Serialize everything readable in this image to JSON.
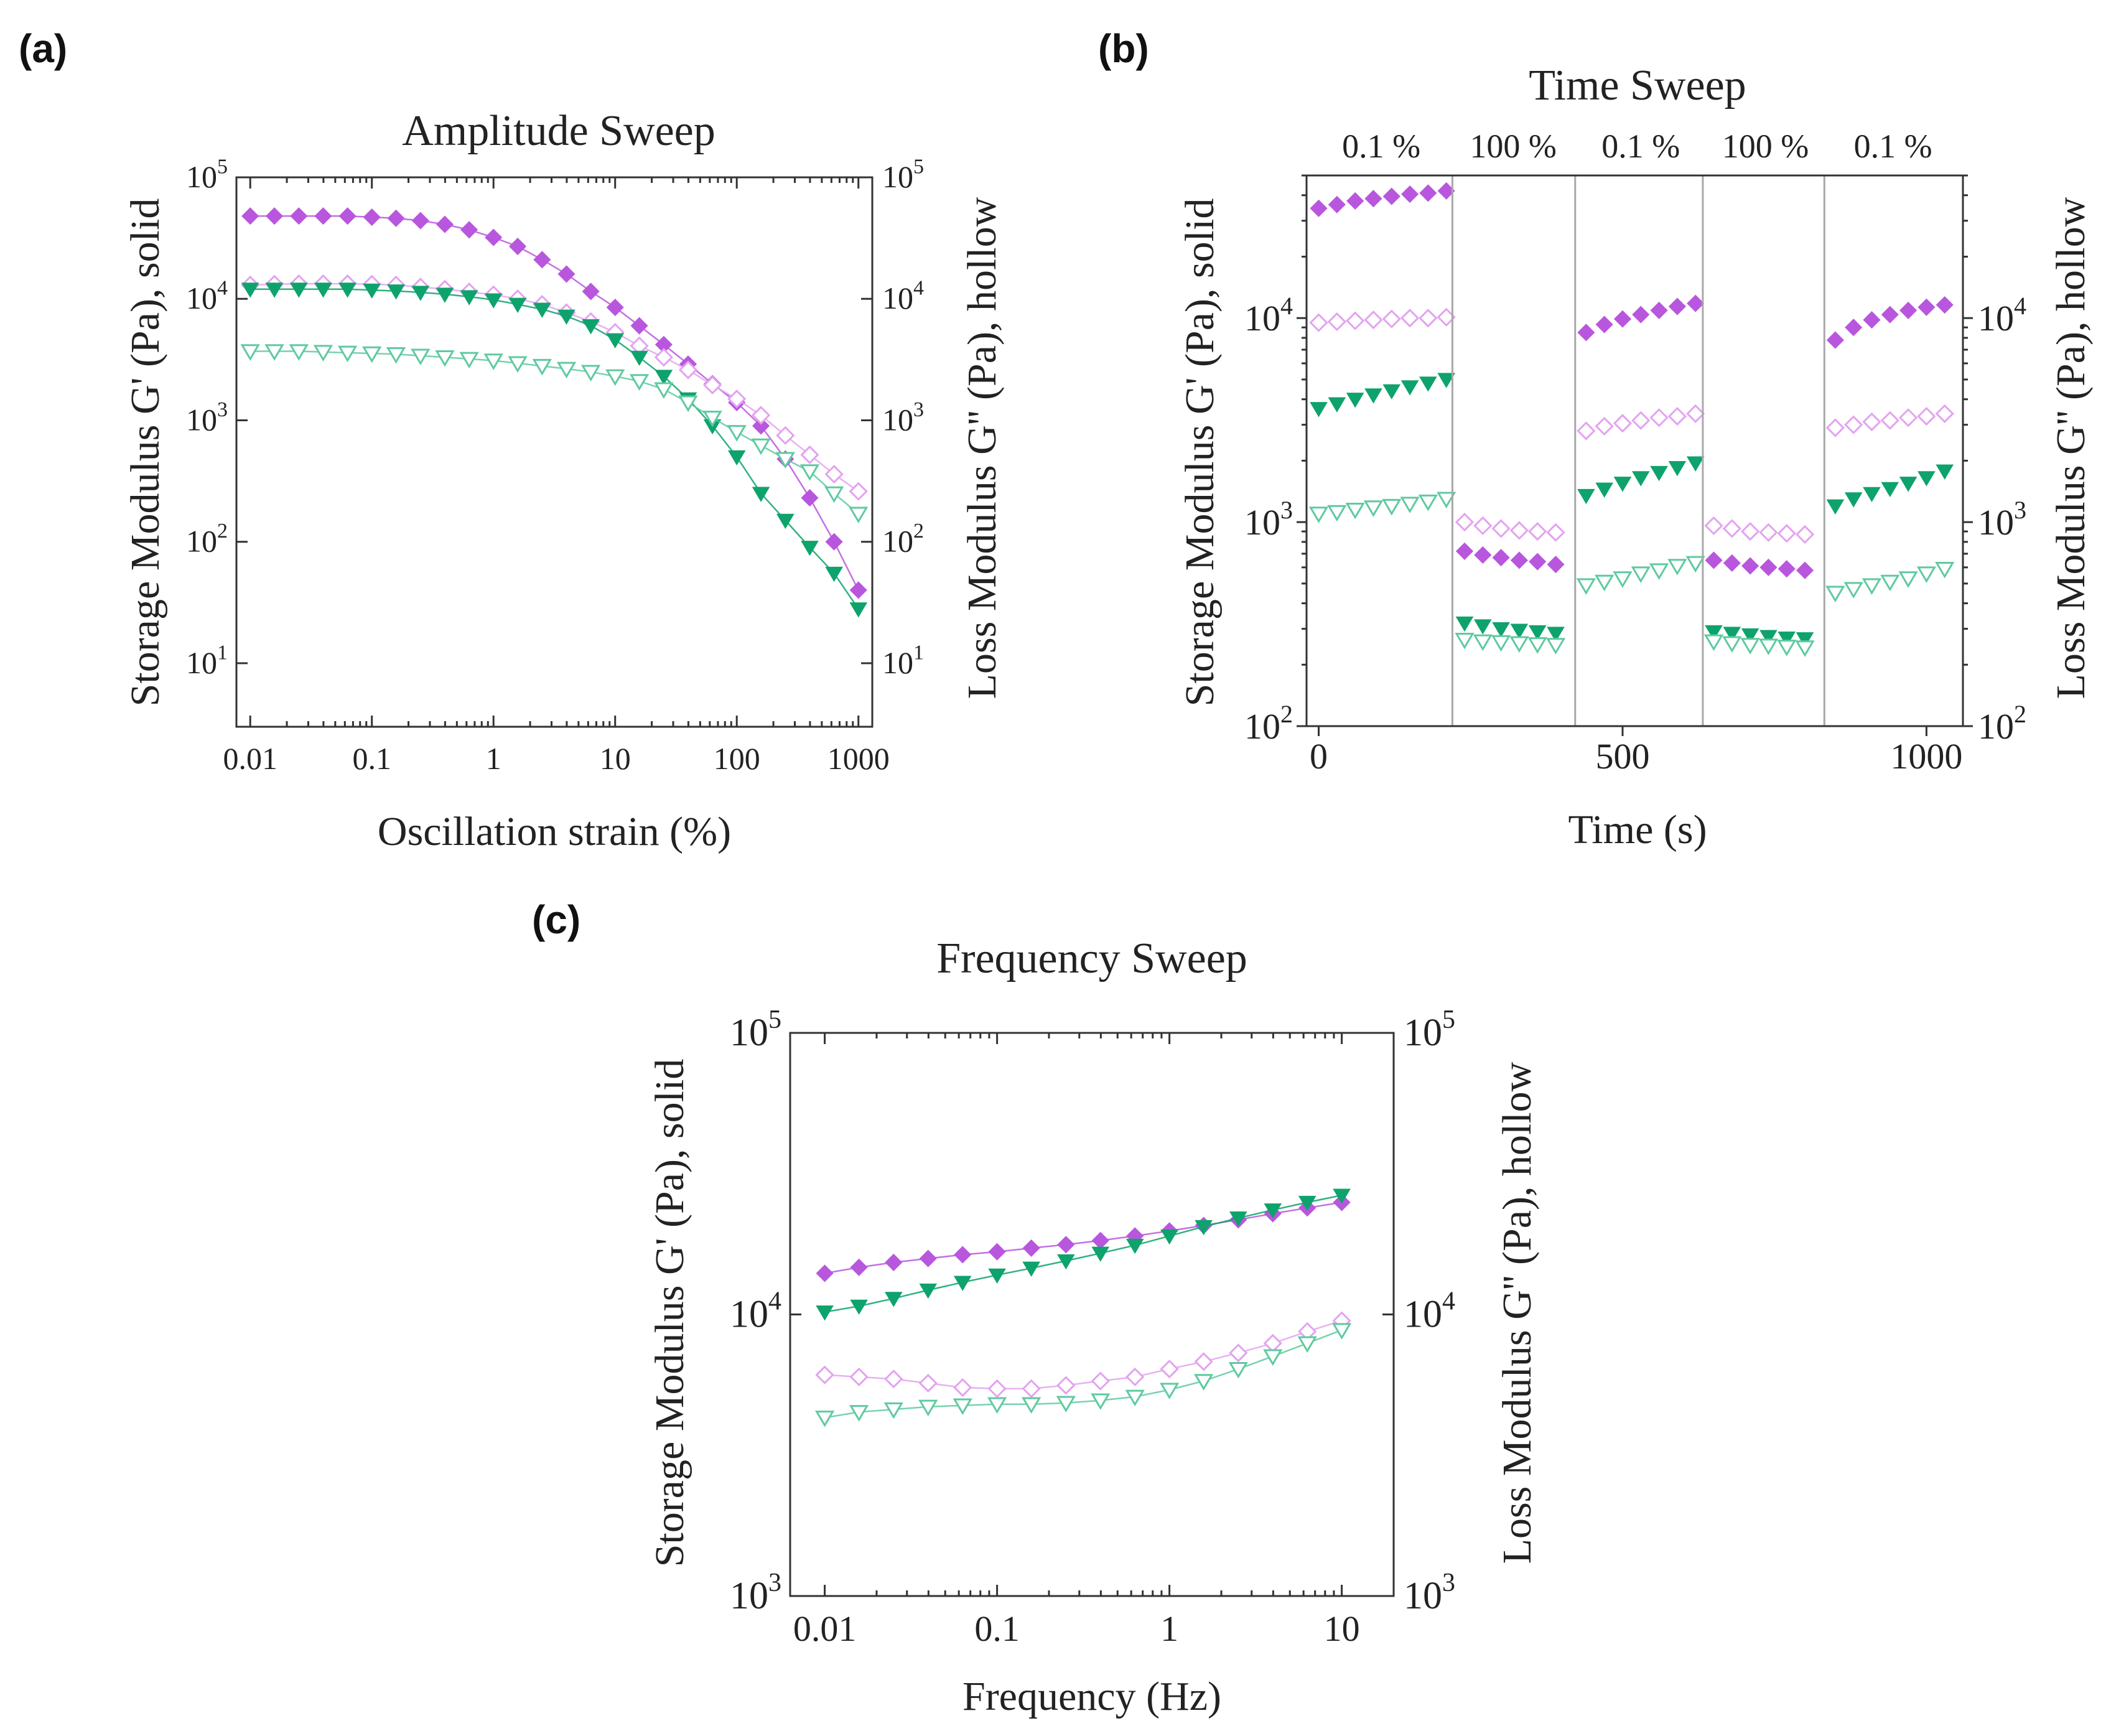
{
  "colors": {
    "magenta": "#b857dd",
    "magenta_light": "#e3a3f0",
    "green": "#0ea36c",
    "green_light": "#5fcaa0",
    "axis": "#333333",
    "divider": "#a8a8a8"
  },
  "chart_data": [
    {
      "id": "a",
      "panel_label": "(a)",
      "type": "scatter",
      "title": "Amplitude Sweep",
      "xlabel": "Oscillation strain (%)",
      "ylabel_left": "Storage Modulus G' (Pa), solid",
      "ylabel_right": "Loss Modulus G'' (Pa), hollow",
      "xscale": "log",
      "yscale": "log",
      "xlim": [
        0.0077,
        1300
      ],
      "ylim": [
        3,
        100000
      ],
      "xticks": [
        0.01,
        0.1,
        1,
        10,
        100,
        1000
      ],
      "xtick_labels": [
        "0.01",
        "0.1",
        "1",
        "10",
        "100",
        "1000"
      ],
      "yticks": [
        10,
        100,
        1000,
        10000,
        100000
      ],
      "ytick_base": "10",
      "ytick_exps": [
        "1",
        "2",
        "3",
        "4",
        "5"
      ],
      "x": [
        0.01,
        0.0158,
        0.0251,
        0.0398,
        0.0631,
        0.1,
        0.158,
        0.251,
        0.398,
        0.631,
        1,
        1.58,
        2.51,
        3.98,
        6.31,
        10,
        15.8,
        25.1,
        39.8,
        63.1,
        100,
        158,
        251,
        398,
        631,
        1000
      ],
      "series": [
        {
          "name": "G' (solid diamond)",
          "color": "magenta",
          "marker": "diamond",
          "fill": true,
          "values": [
            48000,
            48000,
            48000,
            48000,
            48000,
            47000,
            46000,
            44000,
            41000,
            37000,
            32000,
            27000,
            21000,
            16000,
            11500,
            8500,
            6000,
            4200,
            2900,
            2000,
            1400,
            900,
            480,
            230,
            100,
            40
          ]
        },
        {
          "name": "G'' (hollow diamond)",
          "color": "magenta_light",
          "marker": "diamond",
          "fill": false,
          "values": [
            13000,
            13200,
            13300,
            13300,
            13300,
            13200,
            13000,
            12500,
            12000,
            11400,
            10800,
            10000,
            9000,
            7700,
            6500,
            5300,
            4100,
            3300,
            2600,
            1950,
            1500,
            1100,
            750,
            520,
            360,
            260
          ]
        },
        {
          "name": "G' (solid triangle)",
          "color": "green",
          "marker": "triangle",
          "fill": true,
          "values": [
            12000,
            12000,
            12000,
            12000,
            12000,
            11800,
            11600,
            11300,
            10900,
            10400,
            9800,
            9000,
            8200,
            7200,
            6000,
            4600,
            3300,
            2300,
            1500,
            900,
            500,
            250,
            150,
            90,
            55,
            28
          ]
        },
        {
          "name": "G'' (hollow triangle)",
          "color": "green_light",
          "marker": "triangle",
          "fill": false,
          "values": [
            3700,
            3700,
            3700,
            3650,
            3600,
            3550,
            3500,
            3400,
            3300,
            3200,
            3100,
            2950,
            2800,
            2650,
            2500,
            2300,
            2100,
            1800,
            1400,
            1050,
            800,
            620,
            480,
            380,
            250,
            170
          ]
        }
      ]
    },
    {
      "id": "b",
      "panel_label": "(b)",
      "type": "scatter",
      "title": "Time Sweep",
      "xlabel": "Time (s)",
      "ylabel_left": "Storage Modulus G' (Pa), solid",
      "ylabel_right": "Loss Modulus G'' (Pa), hollow",
      "xscale": "linear",
      "yscale": "log",
      "xlim": [
        -20,
        1060
      ],
      "ylim": [
        100,
        50000
      ],
      "xticks": [
        0,
        500,
        1000
      ],
      "xtick_labels": [
        "0",
        "500",
        "1000"
      ],
      "yticks": [
        100,
        1000,
        10000
      ],
      "ytick_base": "10",
      "ytick_exps": [
        "2",
        "3",
        "4"
      ],
      "dividers": [
        220,
        422,
        632,
        832
      ],
      "segment_labels": [
        {
          "label": "0.1 %",
          "x": 103
        },
        {
          "label": "100 %",
          "x": 320
        },
        {
          "label": "0.1 %",
          "x": 530
        },
        {
          "label": "100 %",
          "x": 735
        },
        {
          "label": "0.1 %",
          "x": 945
        }
      ],
      "segments": [
        {
          "x": [
            0,
            30,
            60,
            90,
            120,
            150,
            180,
            210
          ],
          "gp_mag": [
            34500,
            36000,
            37500,
            38500,
            39500,
            40500,
            41000,
            42000
          ],
          "gpp_mag": [
            9500,
            9600,
            9700,
            9800,
            9900,
            10000,
            10000,
            10100
          ],
          "gp_grn": [
            3600,
            3800,
            4000,
            4200,
            4400,
            4600,
            4800,
            5000
          ],
          "gpp_grn": [
            1100,
            1120,
            1150,
            1180,
            1200,
            1230,
            1260,
            1300
          ]
        },
        {
          "x": [
            240,
            270,
            300,
            330,
            360,
            390
          ],
          "gp_mag": [
            720,
            690,
            670,
            650,
            640,
            620
          ],
          "gpp_mag": [
            1000,
            960,
            930,
            910,
            900,
            890
          ],
          "gp_grn": [
            320,
            310,
            300,
            295,
            290,
            285
          ],
          "gpp_grn": [
            265,
            260,
            258,
            255,
            252,
            250
          ]
        },
        {
          "x": [
            440,
            470,
            500,
            530,
            560,
            590,
            620
          ],
          "gp_mag": [
            8500,
            9300,
            9900,
            10400,
            10900,
            11400,
            11800
          ],
          "gpp_mag": [
            2800,
            2950,
            3050,
            3150,
            3250,
            3300,
            3400
          ],
          "gp_grn": [
            1350,
            1450,
            1550,
            1650,
            1750,
            1850,
            1950
          ],
          "gpp_grn": [
            490,
            510,
            530,
            560,
            580,
            610,
            630
          ]
        },
        {
          "x": [
            650,
            680,
            710,
            740,
            770,
            800
          ],
          "gp_mag": [
            650,
            630,
            610,
            600,
            590,
            580
          ],
          "gpp_mag": [
            960,
            930,
            900,
            890,
            880,
            870
          ],
          "gp_grn": [
            290,
            285,
            280,
            275,
            270,
            268
          ],
          "gpp_grn": [
            260,
            255,
            250,
            248,
            245,
            243
          ]
        },
        {
          "x": [
            850,
            880,
            910,
            940,
            970,
            1000,
            1030
          ],
          "gp_mag": [
            7800,
            9000,
            9800,
            10400,
            10900,
            11300,
            11600
          ],
          "gpp_mag": [
            2900,
            3000,
            3100,
            3150,
            3250,
            3300,
            3400
          ],
          "gp_grn": [
            1200,
            1300,
            1380,
            1460,
            1550,
            1650,
            1780
          ],
          "gpp_grn": [
            450,
            470,
            490,
            510,
            530,
            560,
            590
          ]
        }
      ]
    },
    {
      "id": "c",
      "panel_label": "(c)",
      "type": "scatter",
      "title": "Frequency Sweep",
      "xlabel": "Frequency (Hz)",
      "ylabel_left": "Storage Modulus G' (Pa), solid",
      "ylabel_right": "Loss Modulus G'' (Pa), hollow",
      "xscale": "log",
      "yscale": "log",
      "xlim": [
        0.0063,
        20
      ],
      "ylim": [
        1000,
        100000
      ],
      "xticks": [
        0.01,
        0.1,
        1,
        10
      ],
      "xtick_labels": [
        "0.01",
        "0.1",
        "1",
        "10"
      ],
      "yticks": [
        1000,
        10000,
        100000
      ],
      "ytick_base": "10",
      "ytick_exps": [
        "3",
        "4",
        "5"
      ],
      "x": [
        0.01,
        0.0158,
        0.0251,
        0.0398,
        0.0631,
        0.1,
        0.158,
        0.251,
        0.398,
        0.631,
        1,
        1.58,
        2.51,
        3.98,
        6.31,
        10
      ],
      "series": [
        {
          "name": "G' (solid diamond)",
          "color": "magenta",
          "marker": "diamond",
          "fill": true,
          "values": [
            14000,
            14700,
            15300,
            15800,
            16300,
            16700,
            17200,
            17700,
            18300,
            19000,
            19800,
            20700,
            21700,
            22800,
            23900,
            25000
          ]
        },
        {
          "name": "G'' (hollow diamond)",
          "color": "magenta_light",
          "marker": "diamond",
          "fill": false,
          "values": [
            6100,
            6000,
            5900,
            5700,
            5500,
            5450,
            5450,
            5600,
            5800,
            6000,
            6400,
            6800,
            7300,
            7900,
            8700,
            9500
          ]
        },
        {
          "name": "G' (solid triangle)",
          "color": "green",
          "marker": "triangle",
          "fill": true,
          "values": [
            10200,
            10700,
            11400,
            12200,
            13000,
            13800,
            14600,
            15500,
            16500,
            17600,
            19000,
            20500,
            22000,
            23500,
            25000,
            26500
          ]
        },
        {
          "name": "G'' (hollow triangle)",
          "color": "green_light",
          "marker": "triangle",
          "fill": false,
          "values": [
            4300,
            4500,
            4600,
            4700,
            4750,
            4800,
            4800,
            4850,
            4950,
            5100,
            5400,
            5800,
            6400,
            7100,
            7900,
            8800
          ]
        }
      ]
    }
  ]
}
